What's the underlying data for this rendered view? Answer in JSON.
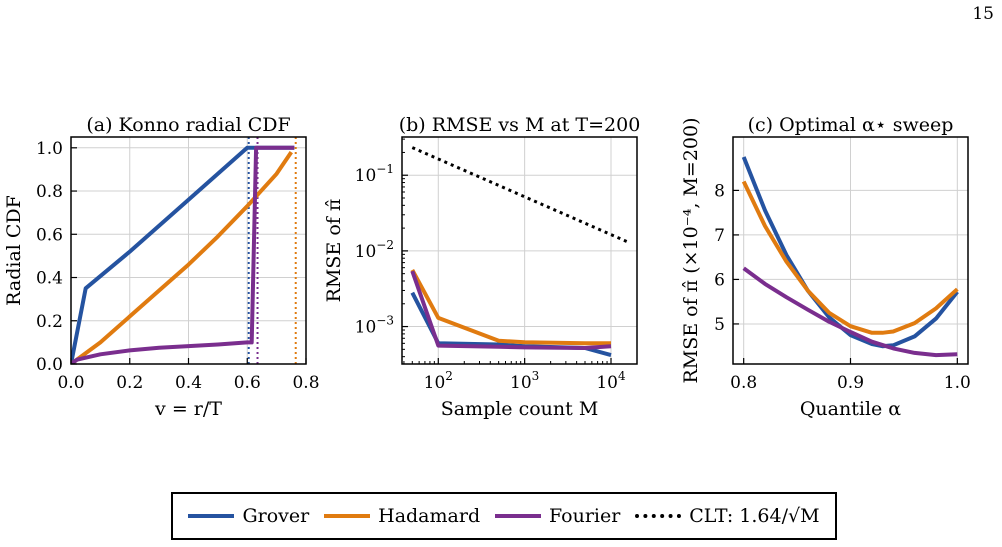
{
  "page_number": "15",
  "colors": {
    "Grover": "#2553a0",
    "Hadamard": "#e07b10",
    "Fourier": "#7a2e8e",
    "CLT": "#000000",
    "grid": "#d0d0d0"
  },
  "legend": {
    "items": [
      {
        "label": "Grover",
        "color": "#2553a0",
        "style": "solid"
      },
      {
        "label": "Hadamard",
        "color": "#e07b10",
        "style": "solid"
      },
      {
        "label": "Fourier",
        "color": "#7a2e8e",
        "style": "solid"
      },
      {
        "label": "CLT: 1.64/√M",
        "color": "#000000",
        "style": "dotted"
      }
    ]
  },
  "chart_data": [
    {
      "type": "line",
      "title": "(a) Konno radial CDF",
      "xlabel": "v = r/T",
      "ylabel": "Radial CDF",
      "xlim": [
        0,
        0.8
      ],
      "ylim": [
        0,
        1.05
      ],
      "xticks": [
        0.0,
        0.2,
        0.4,
        0.6,
        0.8
      ],
      "xtick_labels": [
        "0.0",
        "0.2",
        "0.4",
        "0.6",
        "0.8"
      ],
      "yticks": [
        0.0,
        0.2,
        0.4,
        0.6,
        0.8,
        1.0
      ],
      "ytick_labels": [
        "0.0",
        "0.2",
        "0.4",
        "0.6",
        "0.8",
        "1.0"
      ],
      "grid": true,
      "series": [
        {
          "name": "Grover",
          "x": [
            0,
            0.05,
            0.2,
            0.4,
            0.6,
            0.76
          ],
          "y": [
            0,
            0.35,
            0.52,
            0.76,
            1.0,
            1.0
          ]
        },
        {
          "name": "Hadamard",
          "x": [
            0,
            0.1,
            0.2,
            0.3,
            0.4,
            0.5,
            0.6,
            0.7,
            0.75
          ],
          "y": [
            0,
            0.1,
            0.22,
            0.34,
            0.46,
            0.59,
            0.73,
            0.88,
            0.98
          ]
        },
        {
          "name": "Fourier",
          "x": [
            0,
            0.02,
            0.1,
            0.2,
            0.3,
            0.4,
            0.5,
            0.6,
            0.615,
            0.63,
            0.76
          ],
          "y": [
            0,
            0.02,
            0.045,
            0.063,
            0.075,
            0.083,
            0.09,
            0.1,
            0.1,
            1.0,
            1.0
          ]
        }
      ],
      "vlines": [
        {
          "x": 0.605,
          "color": "#2553a0"
        },
        {
          "x": 0.635,
          "color": "#7a2e8e"
        },
        {
          "x": 0.765,
          "color": "#e07b10"
        }
      ]
    },
    {
      "type": "line",
      "title": "(b) RMSE vs M at T=200",
      "xlabel": "Sample count M",
      "ylabel": "RMSE of π̂",
      "xscale": "log",
      "yscale": "log",
      "xlim": [
        38,
        20000
      ],
      "ylim": [
        0.00032,
        0.32
      ],
      "xticks": [
        100,
        1000,
        10000
      ],
      "xtick_labels": [
        "10^2",
        "10^3",
        "10^4"
      ],
      "yticks": [
        0.001,
        0.01,
        0.1
      ],
      "ytick_labels": [
        "10^-3",
        "10^-2",
        "10^-1"
      ],
      "grid": true,
      "series": [
        {
          "name": "Grover",
          "x": [
            50,
            100,
            500,
            1000,
            5000,
            10000
          ],
          "y": [
            0.0028,
            0.0006,
            0.00058,
            0.00055,
            0.00052,
            0.00042
          ]
        },
        {
          "name": "Hadamard",
          "x": [
            50,
            100,
            500,
            1000,
            5000,
            10000
          ],
          "y": [
            0.0056,
            0.0013,
            0.00065,
            0.00062,
            0.0006,
            0.0006
          ]
        },
        {
          "name": "Fourier",
          "x": [
            50,
            100,
            500,
            1000,
            5000,
            10000
          ],
          "y": [
            0.0054,
            0.00056,
            0.00054,
            0.00053,
            0.00052,
            0.00055
          ]
        },
        {
          "name": "CLT",
          "x": [
            50,
            16000
          ],
          "y": [
            0.232,
            0.013
          ],
          "style": "dotted"
        }
      ]
    },
    {
      "type": "line",
      "title": "(c) Optimal α⋆ sweep",
      "xlabel": "Quantile α",
      "ylabel": "RMSE of π̂ (×10⁻⁴, M=200)",
      "xlim": [
        0.79,
        1.01
      ],
      "ylim": [
        4.1,
        9.2
      ],
      "xticks": [
        0.8,
        0.9,
        1.0
      ],
      "xtick_labels": [
        "0.8",
        "0.9",
        "1.0"
      ],
      "yticks": [
        5,
        6,
        7,
        8
      ],
      "ytick_labels": [
        "5",
        "6",
        "7",
        "8"
      ],
      "grid": true,
      "series": [
        {
          "name": "Grover",
          "x": [
            0.8,
            0.82,
            0.84,
            0.86,
            0.88,
            0.9,
            0.92,
            0.93,
            0.94,
            0.96,
            0.98,
            1.0
          ],
          "y": [
            8.75,
            7.55,
            6.55,
            5.75,
            5.15,
            4.75,
            4.55,
            4.5,
            4.52,
            4.72,
            5.12,
            5.72
          ]
        },
        {
          "name": "Hadamard",
          "x": [
            0.8,
            0.82,
            0.84,
            0.86,
            0.88,
            0.9,
            0.92,
            0.93,
            0.94,
            0.96,
            0.98,
            1.0
          ],
          "y": [
            8.2,
            7.2,
            6.4,
            5.75,
            5.25,
            4.95,
            4.8,
            4.8,
            4.83,
            5.02,
            5.35,
            5.78
          ]
        },
        {
          "name": "Fourier",
          "x": [
            0.8,
            0.82,
            0.84,
            0.86,
            0.88,
            0.9,
            0.92,
            0.94,
            0.96,
            0.98,
            1.0
          ],
          "y": [
            6.25,
            5.9,
            5.6,
            5.32,
            5.05,
            4.82,
            4.6,
            4.45,
            4.35,
            4.3,
            4.32
          ]
        }
      ]
    }
  ]
}
